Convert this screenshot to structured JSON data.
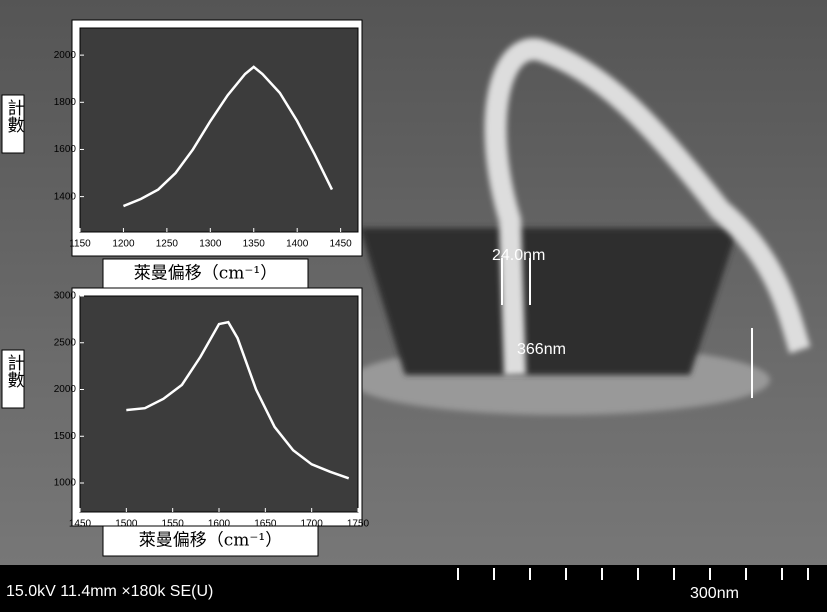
{
  "chart_data": [
    {
      "type": "line",
      "y_label": "計數",
      "x_label": "萊曼偏移（cm⁻¹）",
      "x": [
        1200,
        1220,
        1240,
        1260,
        1280,
        1300,
        1320,
        1340,
        1350,
        1360,
        1380,
        1400,
        1420,
        1440
      ],
      "series": [
        {
          "color": "#ffffff",
          "values": [
            1360,
            1390,
            1430,
            1500,
            1600,
            1720,
            1830,
            1920,
            1950,
            1920,
            1840,
            1720,
            1580,
            1430
          ]
        }
      ],
      "xlim": [
        1150,
        1470
      ],
      "xticks": [
        1150,
        1200,
        1250,
        1300,
        1350,
        1400,
        1450
      ],
      "ylim": [
        1250,
        2115
      ],
      "yticks": [
        1400,
        1600,
        1800,
        2000
      ]
    },
    {
      "type": "line",
      "y_label": "計數",
      "x_label": "萊曼偏移（cm⁻¹）",
      "x": [
        1500,
        1520,
        1540,
        1560,
        1580,
        1600,
        1610,
        1620,
        1640,
        1660,
        1680,
        1700,
        1720,
        1740
      ],
      "series": [
        {
          "color": "#ffffff",
          "values": [
            1780,
            1800,
            1900,
            2050,
            2350,
            2700,
            2720,
            2550,
            2000,
            1600,
            1350,
            1200,
            1120,
            1050
          ]
        }
      ],
      "xlim": [
        1450,
        1750
      ],
      "xticks": [
        1450,
        1500,
        1550,
        1600,
        1650,
        1700,
        1750
      ],
      "ylim": [
        690,
        3000
      ],
      "yticks": [
        1000,
        1500,
        2000,
        2500,
        3000
      ]
    }
  ],
  "sem": {
    "width_label": "24.0nm",
    "height_label": "366nm",
    "info": "15.0kV 11.4mm ×180k SE(U)",
    "scale": "300nm"
  }
}
